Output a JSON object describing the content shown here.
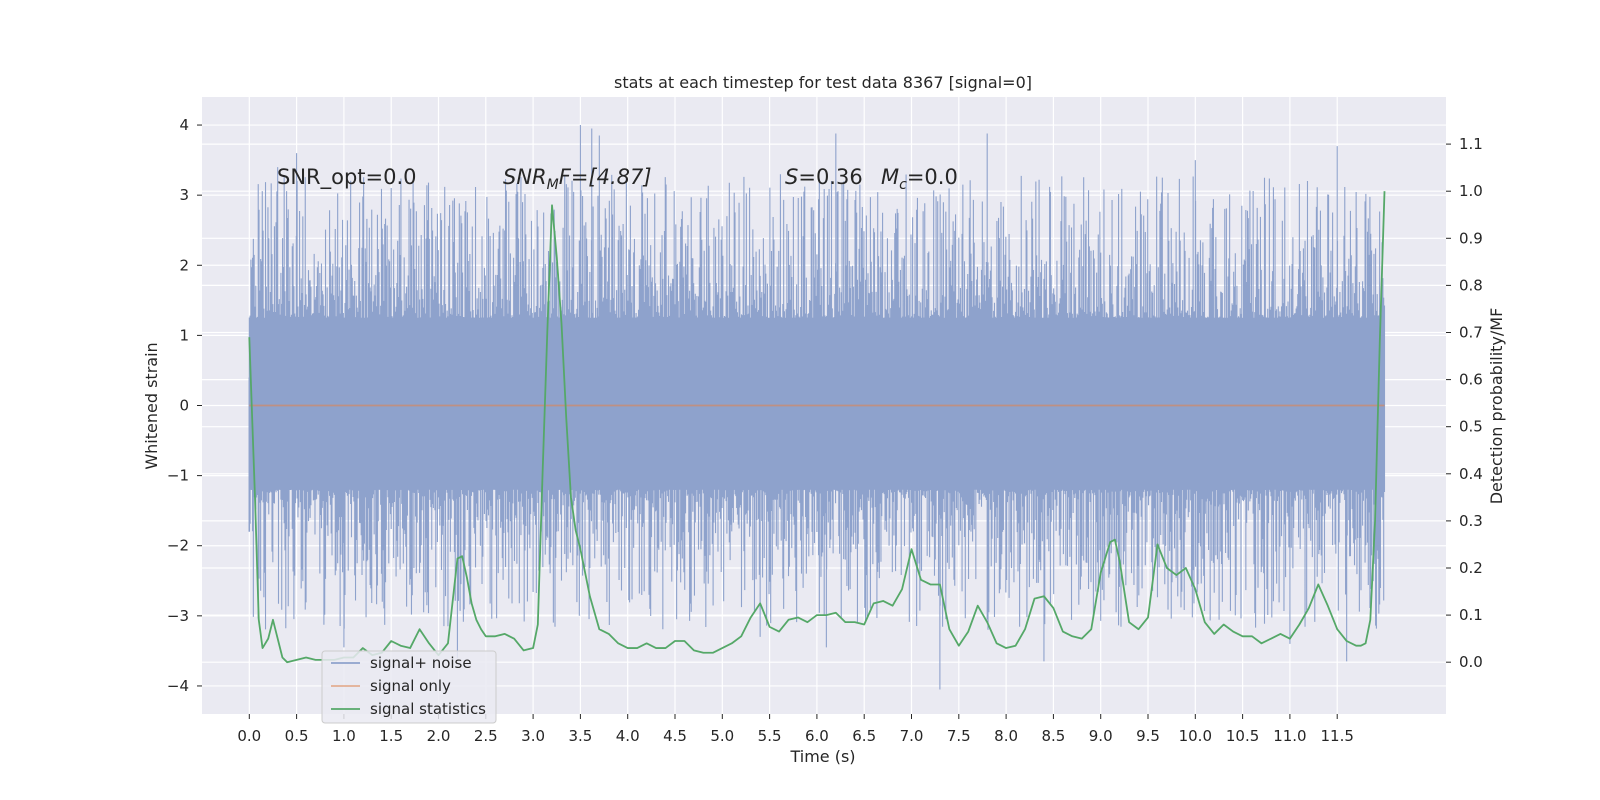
{
  "chart_data": {
    "type": "line",
    "title": "stats at each timestep for test data 8367 [signal=0]",
    "xlabel": "Time (s)",
    "ylabel": "Whitened strain",
    "y2label": "Detection probability/MF",
    "xlim": [
      -0.5,
      12.65
    ],
    "ylim": [
      -4.4,
      4.4
    ],
    "y2lim": [
      -0.11,
      1.2
    ],
    "x_ticks": [
      0.0,
      0.5,
      1.0,
      1.5,
      2.0,
      2.5,
      3.0,
      3.5,
      4.0,
      4.5,
      5.0,
      5.5,
      6.0,
      6.5,
      7.0,
      7.5,
      8.0,
      8.5,
      9.0,
      9.5,
      10.0,
      10.5,
      11.0,
      11.5
    ],
    "x_tick_labels": [
      "0.0",
      "0.5",
      "1.0",
      "1.5",
      "2.0",
      "2.5",
      "3.0",
      "3.5",
      "4.0",
      "4.5",
      "5.0",
      "5.5",
      "6.0",
      "6.5",
      "7.0",
      "7.5",
      "8.0",
      "8.5",
      "9.0",
      "9.5",
      "10.0",
      "10.5",
      "11.0",
      "11.5"
    ],
    "y_ticks": [
      4,
      3,
      2,
      1,
      0,
      -1,
      -2,
      -3,
      -4
    ],
    "y_tick_labels": [
      "4",
      "3",
      "2",
      "1",
      "0",
      "−1",
      "−2",
      "−3",
      "−4"
    ],
    "y2_ticks": [
      1.1,
      1.0,
      0.9,
      0.8,
      0.7,
      0.6,
      0.5,
      0.4,
      0.3,
      0.2,
      0.1,
      0.0
    ],
    "y2_tick_labels": [
      "1.1",
      "1.0",
      "0.9",
      "0.8",
      "0.7",
      "0.6",
      "0.5",
      "0.4",
      "0.3",
      "0.2",
      "0.1",
      "0.0"
    ],
    "annotations": {
      "snr_opt": "SNR_opt=0.0",
      "snr_mf_base": "SNR",
      "snr_mf_sub": "M",
      "snr_mf_rest": "F=[4.87]",
      "s_label": "S",
      "s_value": "=0.36",
      "mc_base": "M",
      "mc_sub": "c",
      "mc_value": "=0.0"
    },
    "legend": {
      "placement": "lower-left",
      "entries": [
        "signal+ noise",
        "signal only",
        "signal statistics"
      ]
    },
    "grid": true,
    "series": [
      {
        "name": "signal+ noise",
        "color": "#8ea2cc",
        "kind": "noise",
        "x_range": [
          0.0,
          12.0
        ],
        "envelope_typical": [
          -2.5,
          2.6
        ],
        "envelope_max": [
          -4.05,
          4.0
        ],
        "peaks": [
          {
            "x": 3.5,
            "y": 4.0
          },
          {
            "x": 3.62,
            "y": 3.95
          },
          {
            "x": 3.7,
            "y": 3.85
          },
          {
            "x": 6.2,
            "y": 3.88
          },
          {
            "x": 7.8,
            "y": 3.88
          },
          {
            "x": 11.5,
            "y": 3.7
          },
          {
            "x": 0.3,
            "y": 3.4
          },
          {
            "x": 0.5,
            "y": 3.6
          },
          {
            "x": 10.0,
            "y": 3.5
          },
          {
            "x": 7.3,
            "y": -4.05
          },
          {
            "x": 8.4,
            "y": -3.65
          },
          {
            "x": 11.6,
            "y": -3.65
          },
          {
            "x": 6.1,
            "y": -3.45
          },
          {
            "x": 2.2,
            "y": -3.6
          },
          {
            "x": 11.0,
            "y": -3.4
          },
          {
            "x": 1.0,
            "y": -3.45
          },
          {
            "x": 5.4,
            "y": -3.3
          }
        ]
      },
      {
        "name": "signal only",
        "color": "#dd8452",
        "kind": "line",
        "x": [
          0.0,
          12.0
        ],
        "y": [
          0.0,
          0.0
        ]
      },
      {
        "name": "signal statistics",
        "color": "#55a868",
        "kind": "line",
        "axis": "right",
        "x": [
          0.0,
          0.06,
          0.1,
          0.14,
          0.2,
          0.25,
          0.3,
          0.35,
          0.4,
          0.5,
          0.6,
          0.7,
          0.8,
          0.9,
          1.0,
          1.1,
          1.2,
          1.3,
          1.4,
          1.5,
          1.6,
          1.7,
          1.8,
          1.9,
          2.0,
          2.1,
          2.2,
          2.25,
          2.3,
          2.35,
          2.4,
          2.45,
          2.5,
          2.6,
          2.7,
          2.8,
          2.9,
          3.0,
          3.05,
          3.1,
          3.15,
          3.2,
          3.25,
          3.3,
          3.35,
          3.4,
          3.45,
          3.5,
          3.6,
          3.7,
          3.8,
          3.9,
          4.0,
          4.1,
          4.2,
          4.3,
          4.4,
          4.5,
          4.6,
          4.7,
          4.8,
          4.9,
          5.0,
          5.1,
          5.2,
          5.3,
          5.4,
          5.5,
          5.6,
          5.7,
          5.8,
          5.9,
          6.0,
          6.1,
          6.2,
          6.3,
          6.4,
          6.5,
          6.6,
          6.7,
          6.8,
          6.9,
          7.0,
          7.1,
          7.2,
          7.3,
          7.4,
          7.5,
          7.6,
          7.7,
          7.8,
          7.9,
          8.0,
          8.1,
          8.2,
          8.3,
          8.4,
          8.5,
          8.6,
          8.7,
          8.8,
          8.9,
          9.0,
          9.1,
          9.15,
          9.2,
          9.3,
          9.4,
          9.5,
          9.6,
          9.7,
          9.8,
          9.9,
          10.0,
          10.1,
          10.2,
          10.3,
          10.4,
          10.5,
          10.6,
          10.7,
          10.8,
          10.9,
          11.0,
          11.1,
          11.2,
          11.3,
          11.4,
          11.5,
          11.6,
          11.7,
          11.75,
          11.8,
          11.85,
          11.9,
          11.95,
          12.0
        ],
        "y": [
          0.69,
          0.35,
          0.09,
          0.03,
          0.05,
          0.09,
          0.05,
          0.01,
          0.0,
          0.005,
          0.01,
          0.005,
          0.005,
          0.005,
          0.01,
          0.01,
          0.03,
          0.015,
          0.02,
          0.045,
          0.035,
          0.03,
          0.07,
          0.04,
          0.015,
          0.04,
          0.22,
          0.225,
          0.18,
          0.125,
          0.09,
          0.07,
          0.055,
          0.055,
          0.06,
          0.05,
          0.025,
          0.03,
          0.08,
          0.4,
          0.7,
          0.97,
          0.86,
          0.72,
          0.52,
          0.35,
          0.28,
          0.24,
          0.14,
          0.07,
          0.06,
          0.04,
          0.03,
          0.03,
          0.04,
          0.03,
          0.03,
          0.045,
          0.045,
          0.025,
          0.02,
          0.02,
          0.03,
          0.04,
          0.055,
          0.095,
          0.125,
          0.075,
          0.065,
          0.09,
          0.095,
          0.085,
          0.1,
          0.1,
          0.105,
          0.085,
          0.085,
          0.08,
          0.125,
          0.13,
          0.12,
          0.155,
          0.24,
          0.175,
          0.165,
          0.165,
          0.07,
          0.035,
          0.065,
          0.12,
          0.085,
          0.04,
          0.03,
          0.035,
          0.07,
          0.135,
          0.14,
          0.115,
          0.065,
          0.055,
          0.05,
          0.07,
          0.19,
          0.255,
          0.26,
          0.215,
          0.085,
          0.07,
          0.095,
          0.25,
          0.2,
          0.185,
          0.2,
          0.155,
          0.085,
          0.06,
          0.08,
          0.065,
          0.055,
          0.055,
          0.04,
          0.05,
          0.06,
          0.05,
          0.08,
          0.115,
          0.165,
          0.12,
          0.07,
          0.045,
          0.035,
          0.035,
          0.04,
          0.09,
          0.3,
          0.68,
          1.0
        ]
      }
    ]
  }
}
